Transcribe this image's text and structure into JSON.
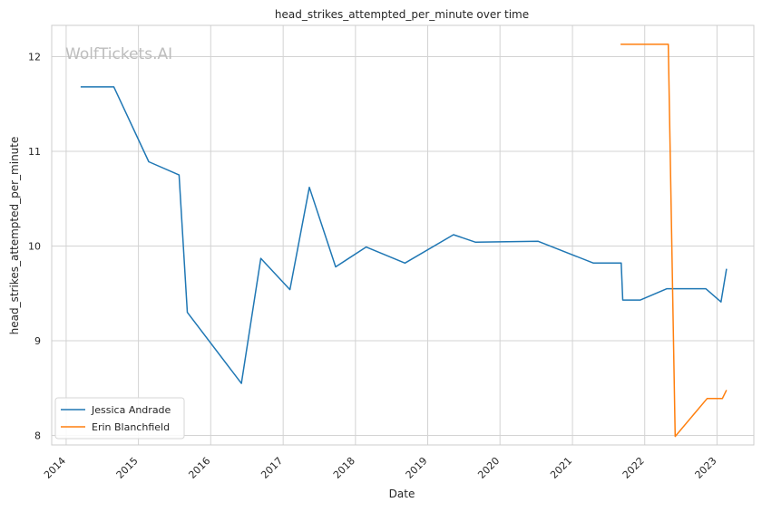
{
  "chart_data": {
    "type": "line",
    "title": "head_strikes_attempted_per_minute over time",
    "xlabel": "Date",
    "ylabel": "head_strikes_attempted_per_minute",
    "watermark": "WolfTickets.AI",
    "x_ticks": [
      "2014",
      "2015",
      "2016",
      "2017",
      "2018",
      "2019",
      "2020",
      "2021",
      "2022",
      "2023"
    ],
    "y_ticks": [
      8,
      9,
      10,
      11,
      12
    ],
    "xlim": [
      "2013-10-20",
      "2023-07-06"
    ],
    "ylim": [
      7.9,
      12.33
    ],
    "grid": true,
    "legend_position": "lower-left",
    "series": [
      {
        "name": "Jessica Andrade",
        "color": "#1f77b4",
        "points": [
          [
            "2014-03-15",
            11.68
          ],
          [
            "2014-08-30",
            11.68
          ],
          [
            "2015-02-22",
            10.89
          ],
          [
            "2015-07-25",
            10.75
          ],
          [
            "2015-09-05",
            9.3
          ],
          [
            "2016-06-04",
            8.55
          ],
          [
            "2016-09-10",
            9.87
          ],
          [
            "2017-02-04",
            9.54
          ],
          [
            "2017-05-13",
            10.62
          ],
          [
            "2017-09-23",
            9.78
          ],
          [
            "2018-02-24",
            9.99
          ],
          [
            "2018-09-08",
            9.82
          ],
          [
            "2019-05-11",
            10.12
          ],
          [
            "2019-08-31",
            10.04
          ],
          [
            "2020-07-12",
            10.05
          ],
          [
            "2020-10-17",
            9.97
          ],
          [
            "2021-04-17",
            9.82
          ],
          [
            "2021-09-04",
            9.82
          ],
          [
            "2021-09-12",
            9.43
          ],
          [
            "2021-12-10",
            9.43
          ],
          [
            "2022-04-23",
            9.55
          ],
          [
            "2022-11-05",
            9.55
          ],
          [
            "2023-01-21",
            9.41
          ],
          [
            "2023-02-18",
            9.76
          ]
        ]
      },
      {
        "name": "Erin Blanchfield",
        "color": "#ff7f0e",
        "points": [
          [
            "2021-09-01",
            12.13
          ],
          [
            "2022-04-30",
            12.13
          ],
          [
            "2022-06-04",
            7.99
          ],
          [
            "2022-11-12",
            8.39
          ],
          [
            "2023-01-28",
            8.39
          ],
          [
            "2023-02-18",
            8.48
          ]
        ]
      }
    ]
  }
}
